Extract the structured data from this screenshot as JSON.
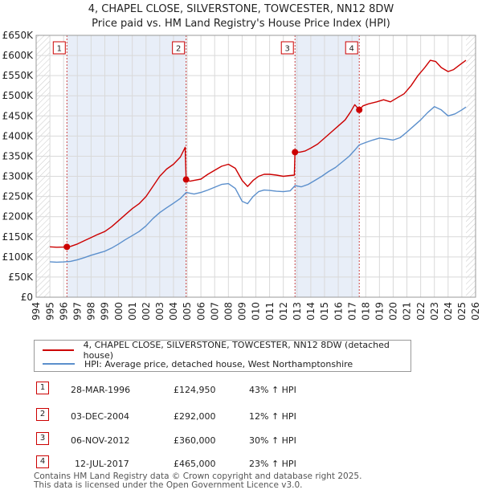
{
  "title_line1": "4, CHAPEL CLOSE, SILVERSTONE, TOWCESTER, NN12 8DW",
  "title_line2": "Price paid vs. HM Land Registry's House Price Index (HPI)",
  "legend": {
    "property": "4, CHAPEL CLOSE, SILVERSTONE, TOWCESTER, NN12 8DW (detached house)",
    "hpi": "HPI: Average price, detached house, West Northamptonshire"
  },
  "colors": {
    "property": "#cc0000",
    "hpi": "#5b8fcc",
    "shade": "#e8eef8",
    "grid": "#d9d9d9"
  },
  "transactions": [
    {
      "num": "1",
      "date": "28-MAR-1996",
      "price": "£124,950",
      "hpi": "43% ↑ HPI"
    },
    {
      "num": "2",
      "date": "03-DEC-2004",
      "price": "£292,000",
      "hpi": "12% ↑ HPI"
    },
    {
      "num": "3",
      "date": "06-NOV-2012",
      "price": "£360,000",
      "hpi": "30% ↑ HPI"
    },
    {
      "num": "4",
      "date": "12-JUL-2017",
      "price": "£465,000",
      "hpi": "23% ↑ HPI"
    }
  ],
  "footer_line1": "Contains HM Land Registry data © Crown copyright and database right 2025.",
  "footer_line2": "This data is licensed under the Open Government Licence v3.0.",
  "chart_data": {
    "type": "line",
    "title": "4, CHAPEL CLOSE, SILVERSTONE, TOWCESTER, NN12 8DW — Price paid vs. HM Land Registry's House Price Index (HPI)",
    "xlabel": "",
    "ylabel": "",
    "xlim": [
      1994,
      2026
    ],
    "ylim": [
      0,
      650000
    ],
    "x_ticks": [
      1994,
      1995,
      1996,
      1997,
      1998,
      1999,
      2000,
      2001,
      2002,
      2003,
      2004,
      2005,
      2006,
      2007,
      2008,
      2009,
      2010,
      2011,
      2012,
      2013,
      2014,
      2015,
      2016,
      2017,
      2018,
      2019,
      2020,
      2021,
      2022,
      2023,
      2024,
      2025,
      2026
    ],
    "y_ticks": [
      0,
      50000,
      100000,
      150000,
      200000,
      250000,
      300000,
      350000,
      400000,
      450000,
      500000,
      550000,
      600000,
      650000
    ],
    "y_tick_labels": [
      "£0",
      "£50K",
      "£100K",
      "£150K",
      "£200K",
      "£250K",
      "£300K",
      "£350K",
      "£400K",
      "£450K",
      "£500K",
      "£550K",
      "£600K",
      "£650K"
    ],
    "series": [
      {
        "name": "4, CHAPEL CLOSE, SILVERSTONE, TOWCESTER, NN12 8DW (detached house)",
        "points": [
          [
            1995,
            125000
          ],
          [
            1995.5,
            124000
          ],
          [
            1996.0,
            124500
          ],
          [
            1996.24,
            124950
          ],
          [
            1996.5,
            126000
          ],
          [
            1997,
            132000
          ],
          [
            1997.5,
            140000
          ],
          [
            1998,
            148000
          ],
          [
            1998.5,
            156000
          ],
          [
            1999,
            163000
          ],
          [
            1999.5,
            175000
          ],
          [
            2000,
            190000
          ],
          [
            2000.5,
            205000
          ],
          [
            2001,
            220000
          ],
          [
            2001.5,
            232000
          ],
          [
            2002,
            250000
          ],
          [
            2002.5,
            275000
          ],
          [
            2003,
            300000
          ],
          [
            2003.5,
            318000
          ],
          [
            2004,
            330000
          ],
          [
            2004.5,
            348000
          ],
          [
            2004.85,
            372000
          ],
          [
            2004.92,
            292000
          ],
          [
            2005.2,
            288000
          ],
          [
            2005.5,
            290000
          ],
          [
            2006,
            293000
          ],
          [
            2006.5,
            305000
          ],
          [
            2007,
            315000
          ],
          [
            2007.5,
            325000
          ],
          [
            2008,
            330000
          ],
          [
            2008.5,
            320000
          ],
          [
            2009,
            290000
          ],
          [
            2009.4,
            275000
          ],
          [
            2009.8,
            290000
          ],
          [
            2010.2,
            300000
          ],
          [
            2010.6,
            305000
          ],
          [
            2011,
            305000
          ],
          [
            2011.5,
            303000
          ],
          [
            2012,
            300000
          ],
          [
            2012.5,
            302000
          ],
          [
            2012.8,
            303000
          ],
          [
            2012.85,
            360000
          ],
          [
            2013.2,
            360000
          ],
          [
            2013.6,
            363000
          ],
          [
            2014,
            370000
          ],
          [
            2014.5,
            380000
          ],
          [
            2015,
            395000
          ],
          [
            2015.5,
            410000
          ],
          [
            2016,
            425000
          ],
          [
            2016.5,
            440000
          ],
          [
            2016.9,
            460000
          ],
          [
            2017.2,
            478000
          ],
          [
            2017.53,
            465000
          ],
          [
            2017.8,
            475000
          ],
          [
            2018.2,
            480000
          ],
          [
            2018.8,
            485000
          ],
          [
            2019.3,
            490000
          ],
          [
            2019.8,
            485000
          ],
          [
            2020.3,
            495000
          ],
          [
            2020.8,
            505000
          ],
          [
            2021.3,
            525000
          ],
          [
            2021.8,
            550000
          ],
          [
            2022.3,
            570000
          ],
          [
            2022.7,
            588000
          ],
          [
            2023.1,
            585000
          ],
          [
            2023.5,
            570000
          ],
          [
            2024.0,
            560000
          ],
          [
            2024.4,
            565000
          ],
          [
            2024.9,
            578000
          ],
          [
            2025.3,
            588000
          ]
        ]
      },
      {
        "name": "HPI: Average price, detached house, West Northamptonshire",
        "points": [
          [
            1995,
            88000
          ],
          [
            1995.5,
            87000
          ],
          [
            1996,
            87500
          ],
          [
            1996.5,
            89000
          ],
          [
            1997,
            93000
          ],
          [
            1997.5,
            98000
          ],
          [
            1998,
            104000
          ],
          [
            1998.5,
            109000
          ],
          [
            1999,
            114000
          ],
          [
            1999.5,
            122000
          ],
          [
            2000,
            132000
          ],
          [
            2000.5,
            143000
          ],
          [
            2001,
            153000
          ],
          [
            2001.5,
            163000
          ],
          [
            2002,
            177000
          ],
          [
            2002.5,
            195000
          ],
          [
            2003,
            210000
          ],
          [
            2003.5,
            222000
          ],
          [
            2004,
            233000
          ],
          [
            2004.5,
            245000
          ],
          [
            2004.92,
            260000
          ],
          [
            2005.5,
            256000
          ],
          [
            2006,
            260000
          ],
          [
            2006.5,
            266000
          ],
          [
            2007,
            273000
          ],
          [
            2007.5,
            280000
          ],
          [
            2008,
            282000
          ],
          [
            2008.5,
            270000
          ],
          [
            2009,
            238000
          ],
          [
            2009.4,
            232000
          ],
          [
            2009.8,
            250000
          ],
          [
            2010.2,
            262000
          ],
          [
            2010.6,
            266000
          ],
          [
            2011,
            265000
          ],
          [
            2011.5,
            263000
          ],
          [
            2012,
            262000
          ],
          [
            2012.5,
            264000
          ],
          [
            2012.85,
            277000
          ],
          [
            2013.3,
            274000
          ],
          [
            2013.8,
            280000
          ],
          [
            2014.3,
            290000
          ],
          [
            2014.8,
            300000
          ],
          [
            2015.3,
            312000
          ],
          [
            2015.8,
            322000
          ],
          [
            2016.3,
            336000
          ],
          [
            2016.8,
            350000
          ],
          [
            2017.2,
            365000
          ],
          [
            2017.53,
            378000
          ],
          [
            2018,
            384000
          ],
          [
            2018.5,
            390000
          ],
          [
            2019,
            395000
          ],
          [
            2019.5,
            393000
          ],
          [
            2020,
            390000
          ],
          [
            2020.5,
            396000
          ],
          [
            2021,
            410000
          ],
          [
            2021.5,
            425000
          ],
          [
            2022,
            440000
          ],
          [
            2022.5,
            458000
          ],
          [
            2023,
            473000
          ],
          [
            2023.5,
            465000
          ],
          [
            2024,
            450000
          ],
          [
            2024.5,
            455000
          ],
          [
            2025,
            465000
          ],
          [
            2025.3,
            472000
          ]
        ]
      }
    ],
    "markers": [
      {
        "label": "1",
        "x": 1996.24,
        "y": 124950
      },
      {
        "label": "2",
        "x": 2004.92,
        "y": 292000
      },
      {
        "label": "3",
        "x": 2012.85,
        "y": 360000
      },
      {
        "label": "4",
        "x": 2017.53,
        "y": 465000
      }
    ],
    "shaded_ranges": [
      [
        1996.24,
        2004.92
      ],
      [
        2012.85,
        2017.53
      ]
    ],
    "hatched_ranges": [
      [
        1994,
        1995
      ],
      [
        2025.3,
        2026
      ]
    ]
  }
}
